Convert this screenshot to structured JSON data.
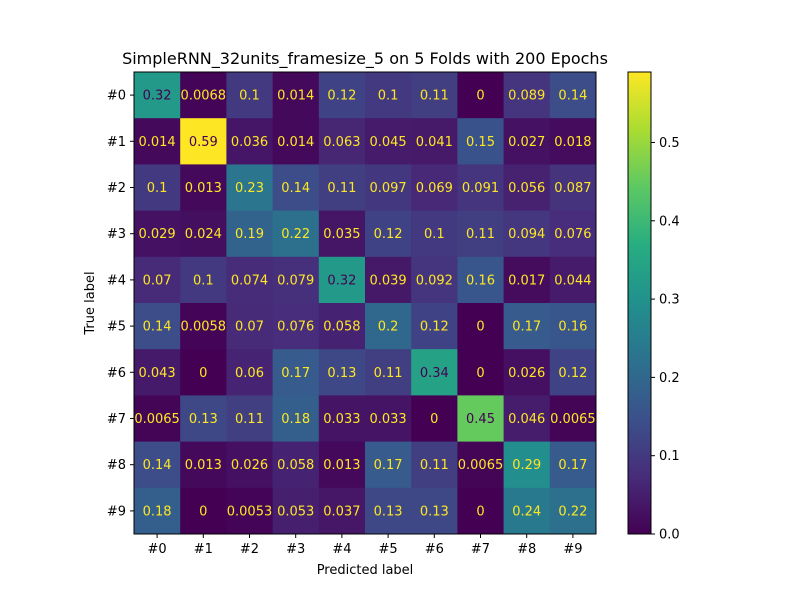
{
  "chart_data": {
    "type": "heatmap",
    "title": "SimpleRNN_32units_framesize_5 on 5 Folds with 200 Epochs",
    "xlabel": "Predicted label",
    "ylabel": "True label",
    "x_categories": [
      "#0",
      "#1",
      "#2",
      "#3",
      "#4",
      "#5",
      "#6",
      "#7",
      "#8",
      "#9"
    ],
    "y_categories": [
      "#0",
      "#1",
      "#2",
      "#3",
      "#4",
      "#5",
      "#6",
      "#7",
      "#8",
      "#9"
    ],
    "values": [
      [
        0.32,
        0.0068,
        0.1,
        0.014,
        0.12,
        0.1,
        0.11,
        0,
        0.089,
        0.14
      ],
      [
        0.014,
        0.59,
        0.036,
        0.014,
        0.063,
        0.045,
        0.041,
        0.15,
        0.027,
        0.018
      ],
      [
        0.1,
        0.013,
        0.23,
        0.14,
        0.11,
        0.097,
        0.069,
        0.091,
        0.056,
        0.087
      ],
      [
        0.029,
        0.024,
        0.19,
        0.22,
        0.035,
        0.12,
        0.1,
        0.11,
        0.094,
        0.076
      ],
      [
        0.07,
        0.1,
        0.074,
        0.079,
        0.32,
        0.039,
        0.092,
        0.16,
        0.017,
        0.044
      ],
      [
        0.14,
        0.0058,
        0.07,
        0.076,
        0.058,
        0.2,
        0.12,
        0,
        0.17,
        0.16
      ],
      [
        0.043,
        0,
        0.06,
        0.17,
        0.13,
        0.11,
        0.34,
        0,
        0.026,
        0.12
      ],
      [
        0.0065,
        0.13,
        0.11,
        0.18,
        0.033,
        0.033,
        0,
        0.45,
        0.046,
        0.0065
      ],
      [
        0.14,
        0.013,
        0.026,
        0.058,
        0.013,
        0.17,
        0.11,
        0.0065,
        0.29,
        0.17
      ],
      [
        0.18,
        0,
        0.0053,
        0.053,
        0.037,
        0.13,
        0.13,
        0,
        0.24,
        0.22
      ]
    ],
    "value_labels": [
      [
        "0.32",
        "0.0068",
        "0.1",
        "0.014",
        "0.12",
        "0.1",
        "0.11",
        "0",
        "0.089",
        "0.14"
      ],
      [
        "0.014",
        "0.59",
        "0.036",
        "0.014",
        "0.063",
        "0.045",
        "0.041",
        "0.15",
        "0.027",
        "0.018"
      ],
      [
        "0.1",
        "0.013",
        "0.23",
        "0.14",
        "0.11",
        "0.097",
        "0.069",
        "0.091",
        "0.056",
        "0.087"
      ],
      [
        "0.029",
        "0.024",
        "0.19",
        "0.22",
        "0.035",
        "0.12",
        "0.1",
        "0.11",
        "0.094",
        "0.076"
      ],
      [
        "0.07",
        "0.1",
        "0.074",
        "0.079",
        "0.32",
        "0.039",
        "0.092",
        "0.16",
        "0.017",
        "0.044"
      ],
      [
        "0.14",
        "0.0058",
        "0.07",
        "0.076",
        "0.058",
        "0.2",
        "0.12",
        "0",
        "0.17",
        "0.16"
      ],
      [
        "0.043",
        "0",
        "0.06",
        "0.17",
        "0.13",
        "0.11",
        "0.34",
        "0",
        "0.026",
        "0.12"
      ],
      [
        "0.0065",
        "0.13",
        "0.11",
        "0.18",
        "0.033",
        "0.033",
        "0",
        "0.45",
        "0.046",
        "0.0065"
      ],
      [
        "0.14",
        "0.013",
        "0.026",
        "0.058",
        "0.013",
        "0.17",
        "0.11",
        "0.0065",
        "0.29",
        "0.17"
      ],
      [
        "0.18",
        "0",
        "0.0053",
        "0.053",
        "0.037",
        "0.13",
        "0.13",
        "0",
        "0.24",
        "0.22"
      ]
    ],
    "colormap": "viridis",
    "vmin": 0,
    "vmax": 0.59,
    "colorbar_ticks": [
      0.0,
      0.1,
      0.2,
      0.3,
      0.4,
      0.5
    ],
    "colorbar_tick_labels": [
      "0.0",
      "0.1",
      "0.2",
      "0.3",
      "0.4",
      "0.5"
    ],
    "text_color_light": "#fde725",
    "text_color_dark": "#440154",
    "grid": false
  }
}
